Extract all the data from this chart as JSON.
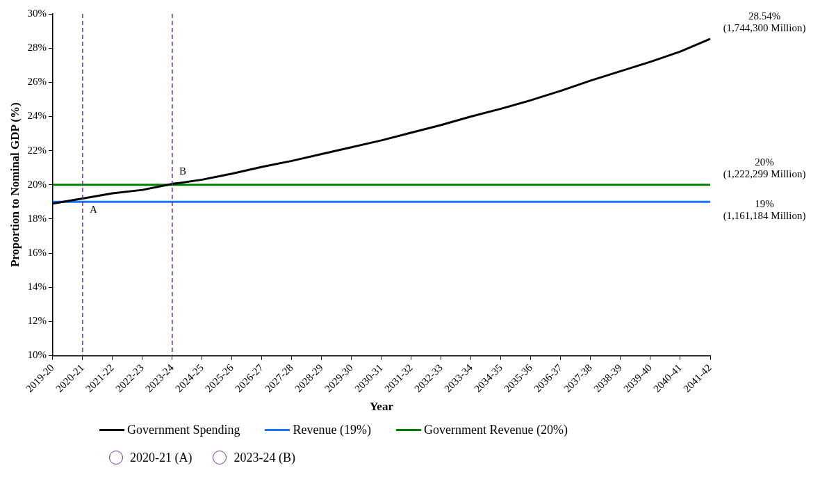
{
  "chart_data": {
    "type": "line",
    "xlabel": "Year",
    "ylabel": "Proportion to Nominal GDP (%)",
    "categories": [
      "2019-20",
      "2020-21",
      "2021-22",
      "2022-23",
      "2023-24",
      "2024-25",
      "2025-26",
      "2026-27",
      "2027-28",
      "2028-29",
      "2029-30",
      "2030-31",
      "2031-32",
      "2032-33",
      "2033-34",
      "2034-35",
      "2035-36",
      "2036-37",
      "2037-38",
      "2038-39",
      "2039-40",
      "2040-41",
      "2041-42"
    ],
    "series": [
      {
        "name": "Government Spending",
        "color": "#000000",
        "values": [
          18.9,
          19.2,
          19.5,
          19.7,
          20.05,
          20.3,
          20.65,
          21.05,
          21.4,
          21.8,
          22.2,
          22.6,
          23.05,
          23.5,
          24.0,
          24.45,
          24.95,
          25.5,
          26.1,
          26.65,
          27.2,
          27.8,
          28.54
        ]
      },
      {
        "name": "Revenue (19%)",
        "color": "#1a75ff",
        "values": [
          19,
          19,
          19,
          19,
          19,
          19,
          19,
          19,
          19,
          19,
          19,
          19,
          19,
          19,
          19,
          19,
          19,
          19,
          19,
          19,
          19,
          19,
          19
        ]
      },
      {
        "name": "Government Revenue (20%)",
        "color": "#008000",
        "values": [
          20,
          20,
          20,
          20,
          20,
          20,
          20,
          20,
          20,
          20,
          20,
          20,
          20,
          20,
          20,
          20,
          20,
          20,
          20,
          20,
          20,
          20,
          20
        ]
      }
    ],
    "ylim": [
      10,
      30
    ],
    "yticks": [
      {
        "value": 10,
        "label": "10%"
      },
      {
        "value": 12,
        "label": "12%"
      },
      {
        "value": 14,
        "label": "14%"
      },
      {
        "value": 16,
        "label": "16%"
      },
      {
        "value": 18,
        "label": "18%"
      },
      {
        "value": 20,
        "label": "20%"
      },
      {
        "value": 22,
        "label": "22%"
      },
      {
        "value": 24,
        "label": "24%"
      },
      {
        "value": 26,
        "label": "26%"
      },
      {
        "value": 28,
        "label": "28%"
      },
      {
        "value": 30,
        "label": "30%"
      }
    ],
    "ref_lines": [
      {
        "axis": "x",
        "value": "2020-21",
        "label": "2020-21 (A)",
        "color": "#7030a0",
        "line_style": "dashed"
      },
      {
        "axis": "x",
        "value": "2023-24",
        "label": "2023-24 (B)",
        "color": "#7030a0",
        "line_style": "dashed"
      }
    ],
    "annotations": [
      {
        "text": "A",
        "x": "2020-21",
        "y": 19.2
      },
      {
        "text": "B",
        "x": "2023-24",
        "y": 20.05
      },
      {
        "text": "28.54%\n(1,744,300 Million)",
        "x": "2041-42",
        "y": 28.54
      },
      {
        "text": "20%\n(1,222,299 Million)",
        "x": "2041-42",
        "y": 20
      },
      {
        "text": "19%\n(1,161,184 Million)",
        "x": "2041-42",
        "y": 19
      }
    ],
    "grid": false,
    "legend": "bottom",
    "marker": "none",
    "line_style": "solid"
  }
}
